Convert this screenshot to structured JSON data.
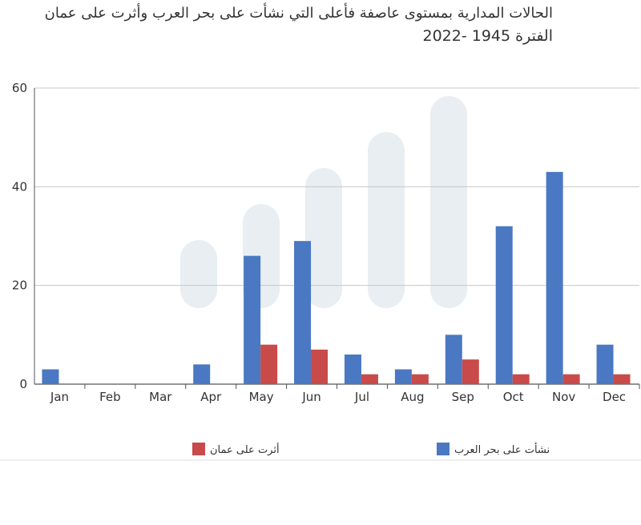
{
  "chart_data": {
    "type": "bar",
    "title_line1": "الحالات المدارية بمستوى عاصفة فأعلى التي نشأت على بحر العرب وأثرت على عمان",
    "title_line2": "الفترة 1945 -2022",
    "categories": [
      "Jan",
      "Feb",
      "Mar",
      "Apr",
      "May",
      "Jun",
      "Jul",
      "Aug",
      "Sep",
      "Oct",
      "Nov",
      "Dec"
    ],
    "series": [
      {
        "name": "نشأت على بحر العرب",
        "color": "#4a78c2",
        "values": [
          3,
          0,
          0,
          4,
          26,
          29,
          6,
          3,
          10,
          32,
          43,
          8
        ]
      },
      {
        "name": "أثرت على عمان",
        "color": "#c94a4a",
        "values": [
          0,
          0,
          0,
          0,
          8,
          7,
          2,
          2,
          5,
          2,
          2,
          2
        ]
      }
    ],
    "ylim": [
      0,
      60
    ],
    "yticks": [
      0,
      20,
      40,
      60
    ],
    "grid": true,
    "legend_position": "bottom"
  }
}
